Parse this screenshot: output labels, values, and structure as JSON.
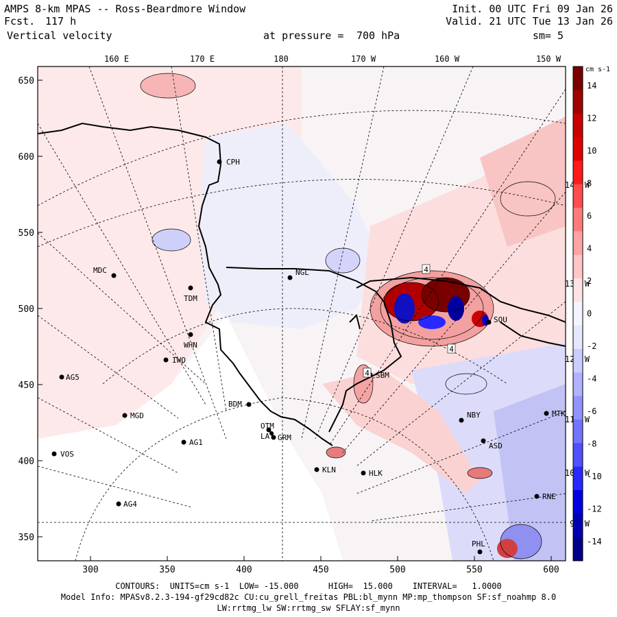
{
  "header": {
    "title": "AMPS 8-km MPAS -- Ross-Beardmore Window",
    "forecast_label": "Fcst.",
    "forecast_value": "117 h",
    "field": "Vertical velocity",
    "pressure_label": "at pressure =",
    "pressure_value": "700 hPa",
    "init": "Init. 00 UTC Fri 09 Jan 26",
    "valid": "Valid. 21 UTC Tue 13 Jan 26",
    "smoothing": "sm= 5"
  },
  "map": {
    "top_labels": [
      "160 E",
      "170 E",
      "180",
      "170 W",
      "160 W",
      "150 W"
    ],
    "right_labels": [
      "140 W",
      "130 W",
      "120 W",
      "110 W",
      "100 W",
      "90 W"
    ],
    "y_ticks": [
      "650",
      "600",
      "550",
      "500",
      "450",
      "400",
      "350"
    ],
    "x_ticks": [
      "300",
      "350",
      "400",
      "450",
      "500",
      "550",
      "600"
    ],
    "stations": [
      "CPH",
      "NGL",
      "MDC",
      "TDM",
      "WHN",
      "IWO",
      "AG5",
      "MGD",
      "AG1",
      "VOS",
      "AG4",
      "BDM",
      "OTM",
      "LAY",
      "GRM",
      "KLN",
      "HLK",
      "SBM",
      "NBY",
      "MTK",
      "ASD",
      "RNE",
      "PHL",
      "SOU"
    ],
    "contour_labels": [
      "4",
      "4",
      "4"
    ]
  },
  "colorbar": {
    "units": "cm s-1",
    "labels": [
      "14",
      "12",
      "10",
      "8",
      "6",
      "4",
      "2",
      "0",
      "-2",
      "-4",
      "-6",
      "-8",
      "-10",
      "-12",
      "-14"
    ],
    "colors": [
      "#7a0000",
      "#a00000",
      "#c80000",
      "#e00000",
      "#ff1a1a",
      "#ff4d4d",
      "#ff7b7b",
      "#ffa3a3",
      "#ffc6c6",
      "#ffe2e2",
      "#f4f4ff",
      "#e6e6ff",
      "#cccdff",
      "#b0b1ff",
      "#9393ff",
      "#7374ff",
      "#5050ff",
      "#2828ff",
      "#0000e0",
      "#0000b0",
      "#00008a"
    ]
  },
  "footer": {
    "contours": "CONTOURS:  UNITS=cm s-1  LOW= -15.000      HIGH=  15.000    INTERVAL=   1.0000",
    "model_info": "Model Info: MPASv8.2.3-194-gf29cd82c CU:cu_grell_freitas PBL:bl_mynn MP:mp_thompson SF:sf_noahmp 8.0",
    "physics": "LW:rrtmg_lw SW:rrtmg_sw SFLAY:sf_mynn"
  }
}
